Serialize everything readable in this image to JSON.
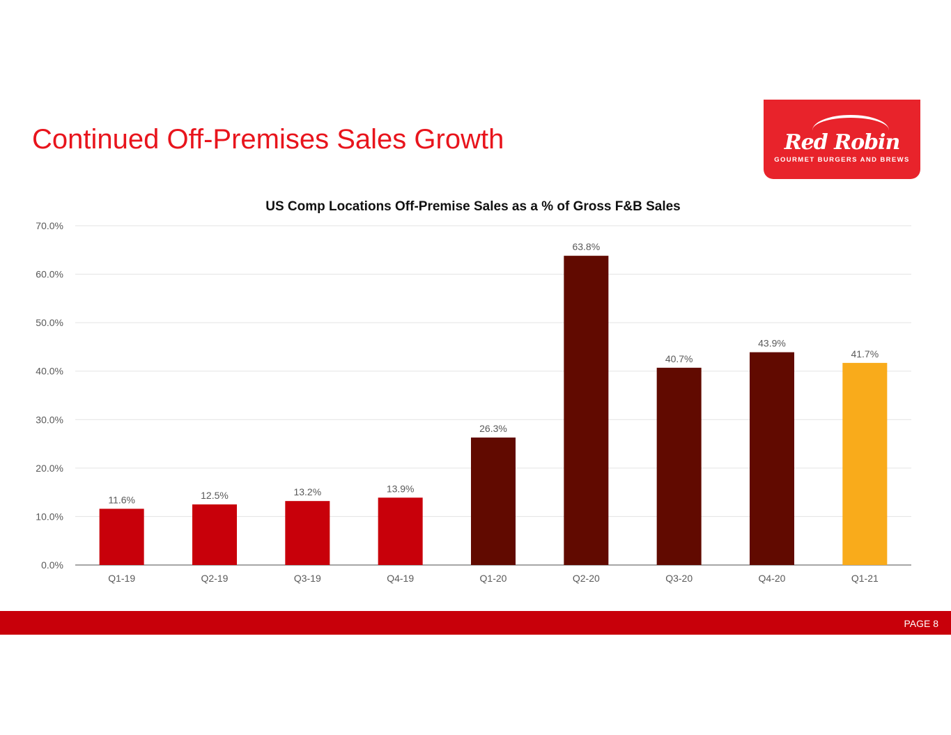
{
  "slide_title": "Continued Off-Premises Sales Growth",
  "logo": {
    "brand": "Red Robin",
    "tagline": "GOURMET BURGERS AND BREWS"
  },
  "footer": {
    "page": "PAGE 8"
  },
  "colors": {
    "pre_covid": "#c8000a",
    "covid": "#610a00",
    "current": "#f9ab1b",
    "accent": "#e8141c"
  },
  "chart_data": {
    "type": "bar",
    "title": "US Comp Locations Off-Premise Sales as a % of Gross F&B Sales",
    "xlabel": "",
    "ylabel": "",
    "categories": [
      "Q1-19",
      "Q2-19",
      "Q3-19",
      "Q4-19",
      "Q1-20",
      "Q2-20",
      "Q3-20",
      "Q4-20",
      "Q1-21"
    ],
    "values": [
      11.6,
      12.5,
      13.2,
      13.9,
      26.3,
      63.8,
      40.7,
      43.9,
      41.7
    ],
    "data_labels": [
      "11.6%",
      "12.5%",
      "13.2%",
      "13.9%",
      "26.3%",
      "63.8%",
      "40.7%",
      "43.9%",
      "41.7%"
    ],
    "bar_color_groups": [
      "pre_covid",
      "pre_covid",
      "pre_covid",
      "pre_covid",
      "covid",
      "covid",
      "covid",
      "covid",
      "current"
    ],
    "ylim": [
      0,
      70
    ],
    "yticks": [
      "0.0%",
      "10.0%",
      "20.0%",
      "30.0%",
      "40.0%",
      "50.0%",
      "60.0%",
      "70.0%"
    ],
    "grid": true,
    "legend": "none"
  }
}
